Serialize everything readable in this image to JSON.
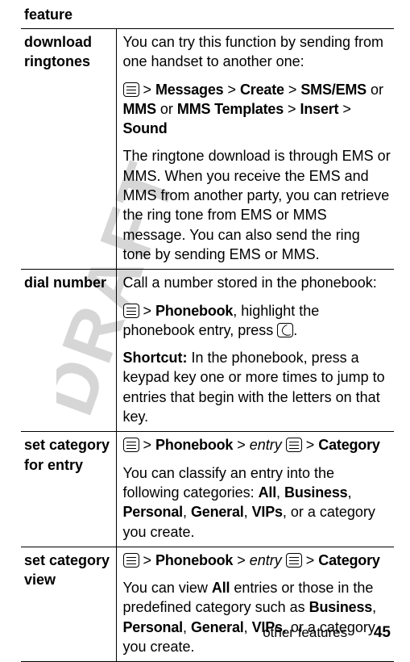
{
  "watermark": {
    "text": "DRAFT",
    "color": "#d6d6d6",
    "fontsize": 82,
    "rotation_deg": 70
  },
  "table": {
    "header": "feature",
    "rows": [
      {
        "label": "download ringtones",
        "p1": "You can try this function by sending from one handset to another one:",
        "path_pre_icon": "",
        "path_after_icon_1": " > ",
        "path_messages": "Messages",
        "gt2": " > ",
        "path_create": "Create",
        "gt3": " > ",
        "path_sms": "SMS/EMS",
        "or1": " or ",
        "path_mms": "MMS",
        "or2": " or ",
        "path_mmstpl": "MMS Templates",
        "gt4": " > ",
        "path_insert": "Insert",
        "gt5": " > ",
        "path_sound": "Sound",
        "p3": "The ringtone download is through EMS or MMS. When you receive the EMS and MMS from another party, you can retrieve the ring tone from EMS or MMS message. You can also send the ring tone by sending EMS or MMS."
      },
      {
        "label": "dial number",
        "p1": "Call a number stored in the phonebook:",
        "gt1": " > ",
        "pbk": "Phonebook",
        "aftpbk": ", highlight the phonebook entry, press ",
        "aftcall": ".",
        "sc_lbl": "Shortcut:",
        "sc_txt": " In the phonebook, press a keypad key one or more times to jump to entries that begin with the letters on that key."
      },
      {
        "label": "set category for entry",
        "gt1": " > ",
        "pbk": "Phonebook",
        "gt2": " > ",
        "entry": "entry",
        "sp": " ",
        "gt3": " > ",
        "cat": "Category",
        "p2a": "You can classify an entry into the following categories: ",
        "c_all": "All",
        "cma1": ", ",
        "c_bus": "Business",
        "cma2": ", ",
        "c_per": "Personal",
        "cma3": ", ",
        "c_gen": "General",
        "cma4": ", ",
        "c_vip": "VIPs",
        "p2b": ", or a category you create."
      },
      {
        "label": "set category view",
        "gt1": " > ",
        "pbk": "Phonebook",
        "gt2": " > ",
        "entry": "entry",
        "sp": " ",
        "gt3": " > ",
        "cat": "Category",
        "p2a": "You can view ",
        "c_all": "All",
        "p2a2": " entries or those in the predefined category such as ",
        "c_bus": "Business",
        "cma1": ", ",
        "c_per": "Personal",
        "cma2": ", ",
        "c_gen": "General",
        "cma3": ", ",
        "c_vip": "VIPs",
        "p2b": ", or a category you create."
      }
    ]
  },
  "footer": {
    "section": "other features",
    "page": "45"
  }
}
